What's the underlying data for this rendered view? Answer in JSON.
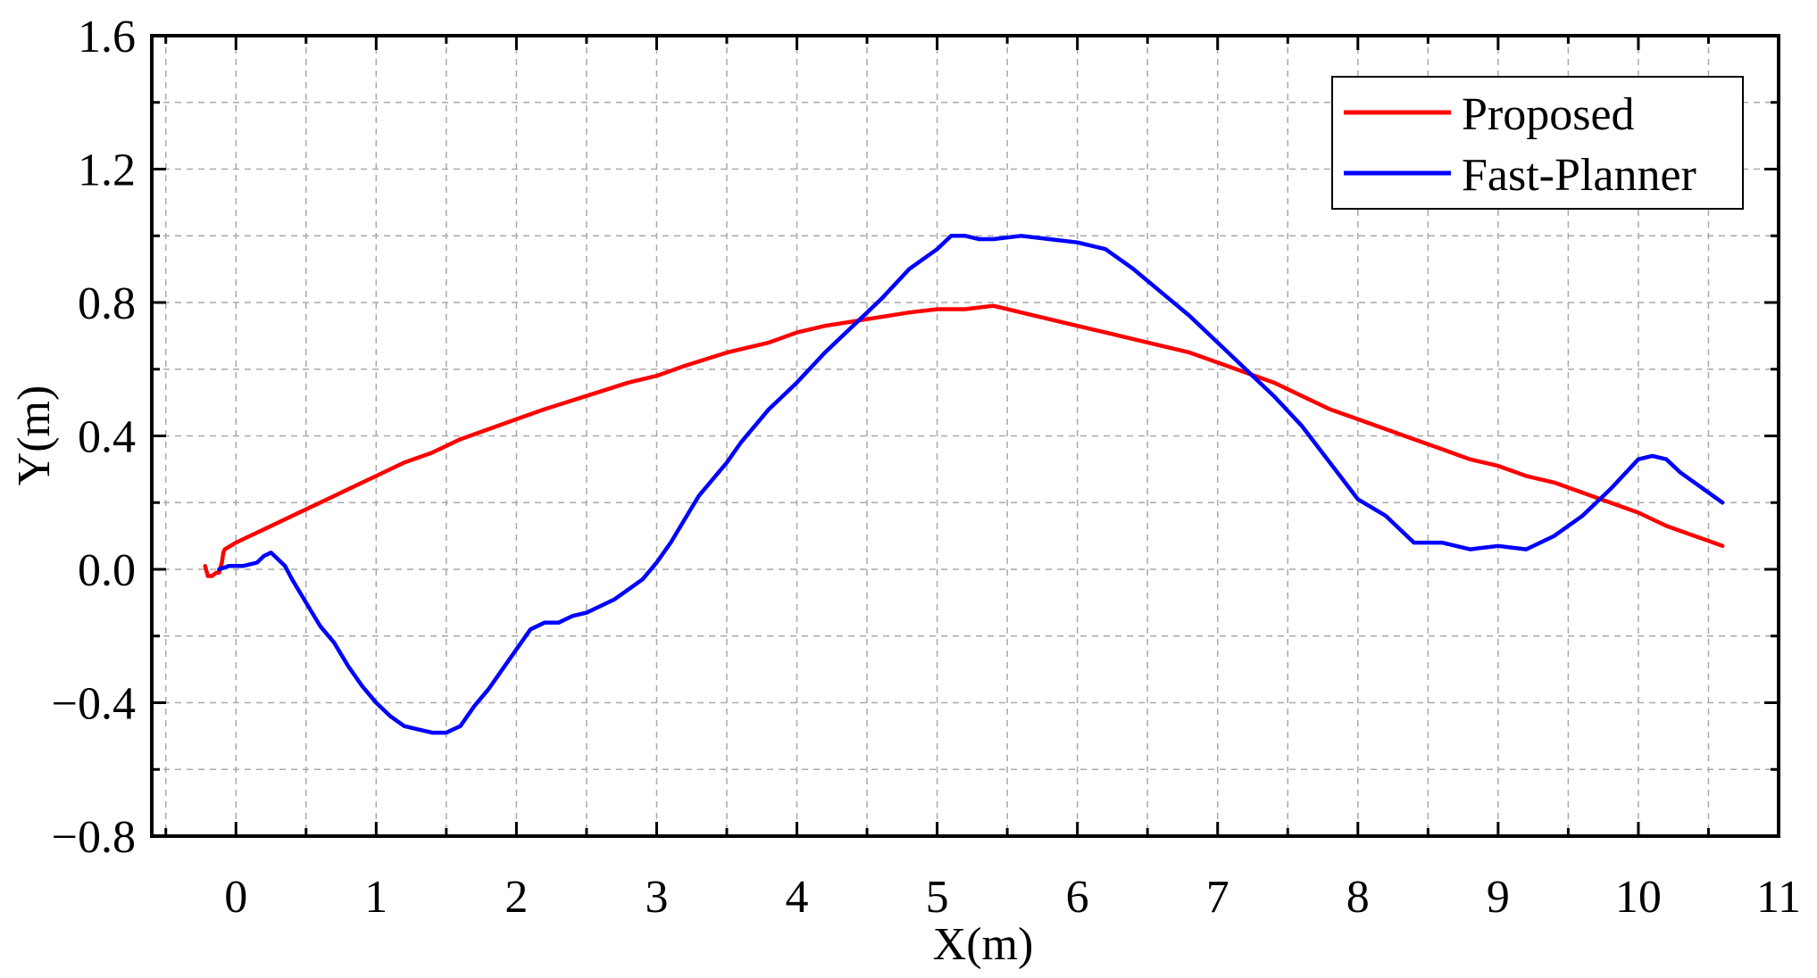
{
  "chart_data": {
    "type": "line",
    "title": "",
    "xlabel": "X(m)",
    "ylabel": "Y(m)",
    "xlim": [
      -0.6,
      11
    ],
    "ylim": [
      -0.8,
      1.6
    ],
    "xticks": [
      0,
      1,
      2,
      3,
      4,
      5,
      6,
      7,
      8,
      9,
      10,
      11
    ],
    "xtick_labels": [
      "0",
      "1",
      "2",
      "3",
      "4",
      "5",
      "6",
      "7",
      "8",
      "9",
      "10",
      "11"
    ],
    "yticks": [
      -0.8,
      -0.4,
      0.0,
      0.4,
      0.8,
      1.2,
      1.6
    ],
    "ytick_labels": [
      "−0.8",
      "−0.4",
      "0.0",
      "0.4",
      "0.8",
      "1.2",
      "1.6"
    ],
    "grid": true,
    "legend_position": "top-right",
    "series": [
      {
        "name": "Proposed",
        "color": "#ff0000",
        "x": [
          -0.22,
          -0.2,
          -0.17,
          -0.14,
          -0.12,
          -0.1,
          -0.09,
          -0.08,
          0.0,
          0.1,
          0.2,
          0.4,
          0.6,
          0.8,
          1.0,
          1.2,
          1.4,
          1.6,
          1.8,
          2.0,
          2.2,
          2.5,
          2.8,
          3.0,
          3.2,
          3.5,
          3.8,
          4.0,
          4.2,
          4.5,
          4.8,
          5.0,
          5.2,
          5.4,
          5.6,
          5.8,
          6.0,
          6.2,
          6.4,
          6.6,
          6.8,
          7.0,
          7.2,
          7.4,
          7.6,
          7.8,
          8.0,
          8.2,
          8.4,
          8.6,
          8.8,
          9.0,
          9.2,
          9.4,
          9.6,
          9.8,
          10.0,
          10.2,
          10.4,
          10.6
        ],
        "y": [
          0.01,
          -0.02,
          -0.02,
          -0.01,
          -0.01,
          0.02,
          0.05,
          0.06,
          0.08,
          0.1,
          0.12,
          0.16,
          0.2,
          0.24,
          0.28,
          0.32,
          0.35,
          0.39,
          0.42,
          0.45,
          0.48,
          0.52,
          0.56,
          0.58,
          0.61,
          0.65,
          0.68,
          0.71,
          0.73,
          0.75,
          0.77,
          0.78,
          0.78,
          0.79,
          0.77,
          0.75,
          0.73,
          0.71,
          0.69,
          0.67,
          0.65,
          0.62,
          0.59,
          0.56,
          0.52,
          0.48,
          0.45,
          0.42,
          0.39,
          0.36,
          0.33,
          0.31,
          0.28,
          0.26,
          0.23,
          0.2,
          0.17,
          0.13,
          0.1,
          0.07
        ]
      },
      {
        "name": "Fast-Planner",
        "color": "#0000ff",
        "x": [
          -0.12,
          -0.05,
          0.05,
          0.15,
          0.2,
          0.25,
          0.3,
          0.35,
          0.4,
          0.5,
          0.6,
          0.7,
          0.8,
          0.9,
          1.0,
          1.1,
          1.2,
          1.3,
          1.4,
          1.5,
          1.6,
          1.7,
          1.8,
          1.9,
          2.0,
          2.1,
          2.2,
          2.3,
          2.4,
          2.5,
          2.6,
          2.7,
          2.8,
          2.9,
          3.0,
          3.1,
          3.2,
          3.3,
          3.4,
          3.5,
          3.6,
          3.7,
          3.8,
          3.9,
          4.0,
          4.2,
          4.4,
          4.6,
          4.8,
          5.0,
          5.1,
          5.2,
          5.3,
          5.4,
          5.6,
          5.8,
          6.0,
          6.2,
          6.4,
          6.6,
          6.8,
          7.0,
          7.2,
          7.4,
          7.6,
          7.8,
          8.0,
          8.2,
          8.4,
          8.6,
          8.8,
          9.0,
          9.2,
          9.4,
          9.6,
          9.8,
          10.0,
          10.1,
          10.2,
          10.3,
          10.4,
          10.5,
          10.6
        ],
        "y": [
          0.0,
          0.01,
          0.01,
          0.02,
          0.04,
          0.05,
          0.03,
          0.01,
          -0.03,
          -0.1,
          -0.17,
          -0.22,
          -0.29,
          -0.35,
          -0.4,
          -0.44,
          -0.47,
          -0.48,
          -0.49,
          -0.49,
          -0.47,
          -0.41,
          -0.36,
          -0.3,
          -0.24,
          -0.18,
          -0.16,
          -0.16,
          -0.14,
          -0.13,
          -0.11,
          -0.09,
          -0.06,
          -0.03,
          0.02,
          0.08,
          0.15,
          0.22,
          0.27,
          0.32,
          0.38,
          0.43,
          0.48,
          0.52,
          0.56,
          0.65,
          0.73,
          0.81,
          0.9,
          0.96,
          1.0,
          1.0,
          0.99,
          0.99,
          1.0,
          0.99,
          0.98,
          0.96,
          0.9,
          0.83,
          0.76,
          0.68,
          0.6,
          0.52,
          0.43,
          0.32,
          0.21,
          0.16,
          0.08,
          0.08,
          0.06,
          0.07,
          0.06,
          0.1,
          0.16,
          0.24,
          0.33,
          0.34,
          0.33,
          0.29,
          0.26,
          0.23,
          0.2
        ]
      }
    ]
  }
}
